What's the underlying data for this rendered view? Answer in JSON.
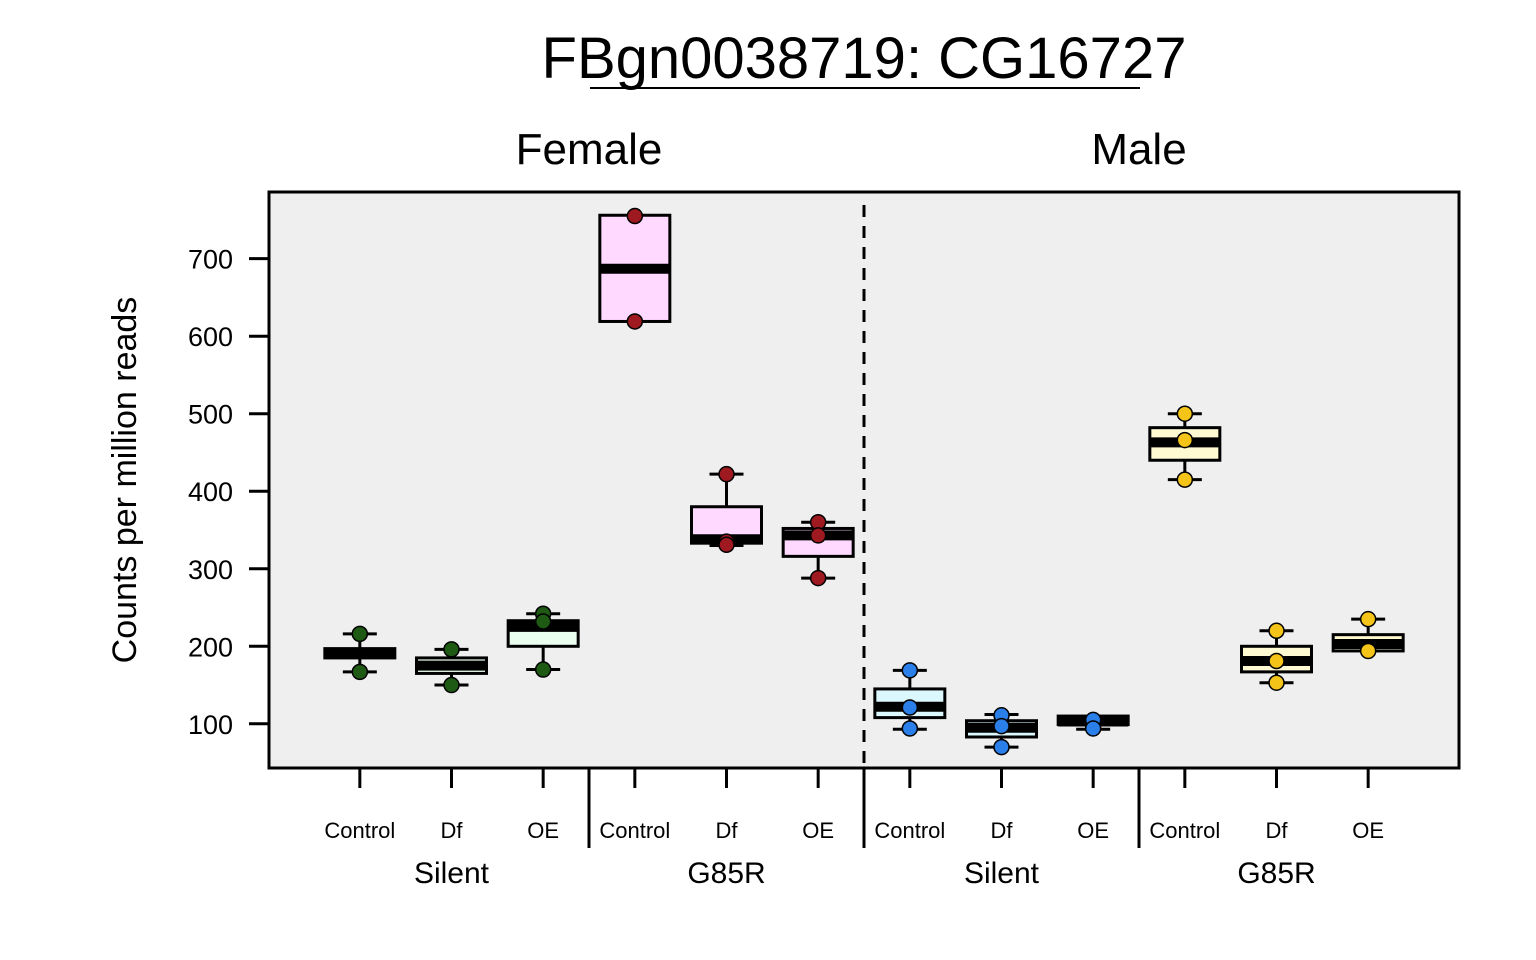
{
  "chart_data": {
    "type": "box",
    "title": "FBgn0038719: CG16727",
    "ylabel": "Counts per million reads",
    "ylim": [
      43,
      786
    ],
    "yticks": [
      100,
      200,
      300,
      400,
      500,
      600,
      700
    ],
    "facet_divider": "dashed",
    "panels": [
      {
        "name": "Female",
        "box_fill": "#ffd9ff",
        "strata": [
          {
            "name": "Silent",
            "box_fill": "#eafff0",
            "point_color": "#1e5a14",
            "groups": [
              {
                "label": "Control",
                "box": [
                  167,
                  185,
                  192,
                  197,
                  216
                ],
                "points": [
                  216,
                  167
                ]
              },
              {
                "label": "Df",
                "box": [
                  150,
                  165,
                  175,
                  185,
                  196
                ],
                "points": [
                  196,
                  150
                ]
              },
              {
                "label": "OE",
                "box": [
                  170,
                  200,
                  225,
                  233,
                  242
                ],
                "points": [
                  242,
                  232,
                  170
                ]
              }
            ]
          },
          {
            "name": "G85R",
            "box_fill": "#ffd9ff",
            "point_color": "#9e1a20",
            "groups": [
              {
                "label": "Control",
                "box": [
                  619,
                  619,
                  687,
                  756,
                  756
                ],
                "points": [
                  755,
                  619
                ]
              },
              {
                "label": "Df",
                "box": [
                  330,
                  333,
                  338,
                  380,
                  422
                ],
                "points": [
                  422,
                  335,
                  331
                ]
              },
              {
                "label": "OE",
                "box": [
                  288,
                  316,
                  343,
                  352,
                  360
                ],
                "points": [
                  360,
                  343,
                  288
                ]
              }
            ]
          }
        ]
      },
      {
        "name": "Male",
        "strata": [
          {
            "name": "Silent",
            "box_fill": "#dcf8ff",
            "point_color": "#2a7fe8",
            "groups": [
              {
                "label": "Control",
                "box": [
                  93,
                  108,
                  122,
                  145,
                  169
                ],
                "points": [
                  169,
                  121,
                  94
                ]
              },
              {
                "label": "Df",
                "box": [
                  70,
                  83,
                  95,
                  104,
                  112
                ],
                "points": [
                  111,
                  97,
                  70
                ]
              },
              {
                "label": "OE",
                "box": [
                  93,
                  99,
                  103,
                  110,
                  110
                ],
                "points": [
                  105,
                  94
                ]
              }
            ]
          },
          {
            "name": "G85R",
            "box_fill": "#fffad2",
            "point_color": "#f5c418",
            "groups": [
              {
                "label": "Control",
                "box": [
                  415,
                  440,
                  463,
                  482,
                  500
                ],
                "points": [
                  500,
                  466,
                  415
                ]
              },
              {
                "label": "Df",
                "box": [
                  153,
                  167,
                  181,
                  200,
                  220
                ],
                "points": [
                  220,
                  181,
                  153
                ]
              },
              {
                "label": "OE",
                "box": [
                  194,
                  194,
                  203,
                  215,
                  235
                ],
                "points": [
                  235,
                  194
                ]
              }
            ]
          }
        ]
      }
    ]
  }
}
